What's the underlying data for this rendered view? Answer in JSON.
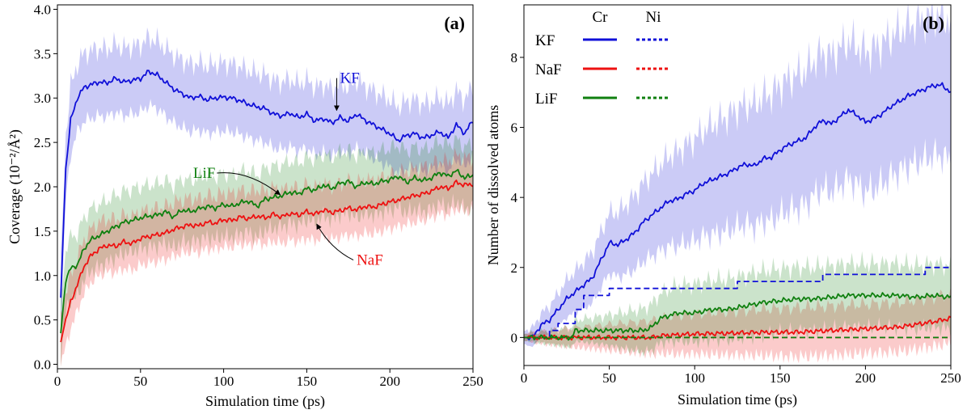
{
  "colors": {
    "KF": "#1010d8",
    "NaF": "#ee1111",
    "LiF": "#108010"
  },
  "chart_data": [
    {
      "panel": "(a)",
      "type": "line",
      "xlabel": "Simulation time (ps)",
      "ylabel": "Coverage (10⁻²/Å²)",
      "xlim": [
        0,
        250
      ],
      "ylim": [
        -0.05,
        4.05
      ],
      "xticks": [
        0,
        50,
        100,
        150,
        200,
        250
      ],
      "yticks": [
        0.0,
        0.5,
        1.0,
        1.5,
        2.0,
        2.5,
        3.0,
        3.5,
        4.0
      ],
      "xtick_labels": [
        "0",
        "50",
        "100",
        "150",
        "200",
        "250"
      ],
      "ytick_labels": [
        "0.0",
        "0.5",
        "1.0",
        "1.5",
        "2.0",
        "2.5",
        "3.0",
        "3.5",
        "4.0"
      ],
      "annotations": [
        {
          "text": "KF",
          "series": "KF",
          "text_x": 170,
          "text_y": 3.17,
          "arrow_x": 168,
          "arrow_y": 2.86
        },
        {
          "text": "LiF",
          "series": "LiF",
          "text_x": 95,
          "text_y": 2.1,
          "arrow_x": 134,
          "arrow_y": 1.91
        },
        {
          "text": "NaF",
          "series": "NaF",
          "text_x": 180,
          "text_y": 1.12,
          "arrow_x": 156,
          "arrow_y": 1.58
        }
      ],
      "series": [
        {
          "name": "KF",
          "style": "solid",
          "band": 0.38,
          "x": [
            2,
            5,
            8,
            12,
            16,
            20,
            25,
            30,
            35,
            40,
            45,
            50,
            55,
            60,
            65,
            70,
            75,
            80,
            85,
            90,
            95,
            100,
            105,
            110,
            115,
            120,
            125,
            130,
            135,
            140,
            145,
            150,
            155,
            160,
            165,
            170,
            175,
            180,
            185,
            190,
            195,
            200,
            205,
            210,
            215,
            220,
            225,
            230,
            235,
            240,
            245,
            250
          ],
          "y": [
            0.75,
            2.2,
            2.75,
            3.0,
            3.12,
            3.15,
            3.18,
            3.17,
            3.22,
            3.18,
            3.2,
            3.22,
            3.3,
            3.26,
            3.18,
            3.1,
            3.05,
            3.0,
            3.02,
            2.98,
            3.0,
            3.01,
            3.0,
            2.97,
            2.93,
            2.9,
            2.88,
            2.82,
            2.8,
            2.83,
            2.78,
            2.82,
            2.74,
            2.77,
            2.72,
            2.78,
            2.74,
            2.82,
            2.75,
            2.7,
            2.65,
            2.6,
            2.52,
            2.58,
            2.6,
            2.55,
            2.58,
            2.62,
            2.55,
            2.7,
            2.6,
            2.75
          ]
        },
        {
          "name": "LiF",
          "style": "solid",
          "band": 0.35,
          "x": [
            2,
            5,
            8,
            12,
            16,
            20,
            25,
            30,
            35,
            40,
            45,
            50,
            55,
            60,
            65,
            70,
            75,
            80,
            85,
            90,
            95,
            100,
            105,
            110,
            115,
            120,
            125,
            130,
            135,
            140,
            145,
            150,
            155,
            160,
            165,
            170,
            175,
            180,
            185,
            190,
            195,
            200,
            205,
            210,
            215,
            220,
            225,
            230,
            235,
            240,
            245,
            250
          ],
          "y": [
            0.35,
            0.95,
            1.08,
            1.12,
            1.3,
            1.4,
            1.45,
            1.5,
            1.55,
            1.6,
            1.62,
            1.65,
            1.67,
            1.68,
            1.72,
            1.66,
            1.74,
            1.72,
            1.75,
            1.78,
            1.76,
            1.8,
            1.78,
            1.82,
            1.84,
            1.78,
            1.86,
            1.88,
            1.9,
            1.94,
            1.92,
            1.98,
            1.96,
            2.02,
            1.98,
            2.04,
            2.06,
            2.0,
            2.05,
            2.03,
            2.06,
            2.08,
            2.12,
            2.05,
            2.1,
            2.07,
            2.1,
            2.16,
            2.12,
            2.18,
            2.1,
            2.13
          ]
        },
        {
          "name": "NaF",
          "style": "solid",
          "band": 0.3,
          "x": [
            2,
            5,
            8,
            12,
            16,
            20,
            25,
            30,
            35,
            40,
            45,
            50,
            55,
            60,
            65,
            70,
            75,
            80,
            85,
            90,
            95,
            100,
            105,
            110,
            115,
            120,
            125,
            130,
            135,
            140,
            145,
            150,
            155,
            160,
            165,
            170,
            175,
            180,
            185,
            190,
            195,
            200,
            205,
            210,
            215,
            220,
            225,
            230,
            235,
            240,
            245,
            250
          ],
          "y": [
            0.25,
            0.5,
            0.7,
            0.9,
            1.1,
            1.22,
            1.3,
            1.34,
            1.33,
            1.38,
            1.36,
            1.42,
            1.44,
            1.46,
            1.48,
            1.52,
            1.55,
            1.57,
            1.56,
            1.6,
            1.59,
            1.63,
            1.62,
            1.66,
            1.64,
            1.67,
            1.65,
            1.69,
            1.66,
            1.7,
            1.68,
            1.72,
            1.69,
            1.74,
            1.71,
            1.73,
            1.76,
            1.74,
            1.78,
            1.77,
            1.8,
            1.83,
            1.85,
            1.88,
            1.9,
            1.92,
            1.95,
            2.0,
            1.98,
            2.05,
            2.02,
            2.03
          ]
        }
      ]
    },
    {
      "panel": "(b)",
      "type": "line",
      "xlabel": "Simulation time (ps)",
      "ylabel": "Number of dissolved atoms",
      "xlim": [
        0,
        250
      ],
      "ylim": [
        -0.8,
        9.5
      ],
      "xticks": [
        0,
        50,
        100,
        150,
        200,
        250
      ],
      "yticks": [
        0,
        2,
        4,
        6,
        8
      ],
      "xtick_labels": [
        "0",
        "50",
        "100",
        "150",
        "200",
        "250"
      ],
      "ytick_labels": [
        "0",
        "2",
        "4",
        "6",
        "8"
      ],
      "legend": {
        "position": "upper-left",
        "column_headers": [
          "Cr",
          "Ni"
        ],
        "rows": [
          {
            "label": "KF",
            "series": "KF"
          },
          {
            "label": "NaF",
            "series": "NaF"
          },
          {
            "label": "LiF",
            "series": "LiF"
          }
        ]
      },
      "series": [
        {
          "name": "KF Cr",
          "salt": "KF",
          "style": "solid",
          "band": [
            0.2,
            0.5,
            0.8,
            1.1,
            1.35,
            1.6,
            1.75,
            1.9,
            1.95,
            2.0,
            2.0,
            2.0
          ],
          "x": [
            0,
            5,
            10,
            15,
            20,
            25,
            30,
            35,
            40,
            45,
            50,
            55,
            60,
            65,
            70,
            75,
            80,
            85,
            90,
            95,
            100,
            105,
            110,
            115,
            120,
            125,
            130,
            135,
            140,
            145,
            150,
            155,
            160,
            165,
            170,
            175,
            180,
            185,
            190,
            195,
            200,
            205,
            210,
            215,
            220,
            225,
            230,
            235,
            240,
            245,
            250
          ],
          "y": [
            0,
            0,
            0.35,
            0.5,
            0.8,
            1.1,
            1.3,
            1.5,
            1.7,
            2.2,
            2.7,
            2.65,
            2.8,
            3.0,
            3.3,
            3.5,
            3.7,
            3.9,
            3.95,
            4.1,
            4.2,
            4.4,
            4.5,
            4.6,
            4.7,
            4.85,
            4.95,
            4.9,
            5.1,
            5.15,
            5.35,
            5.5,
            5.6,
            5.7,
            6.0,
            6.2,
            6.1,
            6.3,
            6.5,
            6.35,
            6.15,
            6.25,
            6.4,
            6.6,
            6.75,
            6.9,
            7.0,
            7.1,
            7.2,
            7.2,
            7.0
          ]
        },
        {
          "name": "NaF Cr",
          "salt": "NaF",
          "style": "solid",
          "band": [
            0.1,
            0.25,
            0.35,
            0.45,
            0.55,
            0.6,
            0.65,
            0.7,
            0.7,
            0.7,
            0.7,
            0.7
          ],
          "x": [
            0,
            25,
            50,
            75,
            80,
            100,
            120,
            140,
            160,
            180,
            200,
            220,
            240,
            250
          ],
          "y": [
            0,
            0,
            0,
            0,
            0.05,
            0.1,
            0.12,
            0.15,
            0.15,
            0.2,
            0.25,
            0.3,
            0.45,
            0.55
          ]
        },
        {
          "name": "LiF Cr",
          "salt": "LiF",
          "style": "solid",
          "band": [
            0.1,
            0.25,
            0.4,
            0.6,
            0.8,
            0.85,
            0.9,
            0.9,
            0.9,
            0.9,
            0.9,
            0.9
          ],
          "x": [
            0,
            28,
            30,
            70,
            75,
            80,
            90,
            100,
            110,
            120,
            130,
            140,
            150,
            160,
            170,
            180,
            190,
            200,
            210,
            220,
            230,
            240,
            250
          ],
          "y": [
            0,
            0,
            0.2,
            0.2,
            0.3,
            0.55,
            0.7,
            0.7,
            0.8,
            0.8,
            0.9,
            1.0,
            1.05,
            1.1,
            1.1,
            1.15,
            1.2,
            1.2,
            1.2,
            1.2,
            1.15,
            1.2,
            1.15
          ]
        },
        {
          "name": "KF Ni",
          "salt": "KF",
          "style": "dashed",
          "x": [
            0,
            12,
            15,
            15,
            20,
            20,
            30,
            30,
            35,
            35,
            40,
            40,
            50,
            50,
            125,
            125,
            175,
            175,
            235,
            235,
            250
          ],
          "y": [
            0,
            0,
            0,
            0.2,
            0.2,
            0.4,
            0.4,
            0.8,
            0.8,
            1.2,
            1.2,
            1.2,
            1.2,
            1.4,
            1.4,
            1.6,
            1.6,
            1.8,
            1.8,
            2.0,
            2.0
          ]
        },
        {
          "name": "NaF Ni",
          "salt": "NaF",
          "style": "dashed",
          "x": [
            0,
            250
          ],
          "y": [
            0,
            0
          ]
        },
        {
          "name": "LiF Ni",
          "salt": "LiF",
          "style": "dashed",
          "x": [
            0,
            250
          ],
          "y": [
            0,
            0
          ]
        }
      ]
    }
  ]
}
